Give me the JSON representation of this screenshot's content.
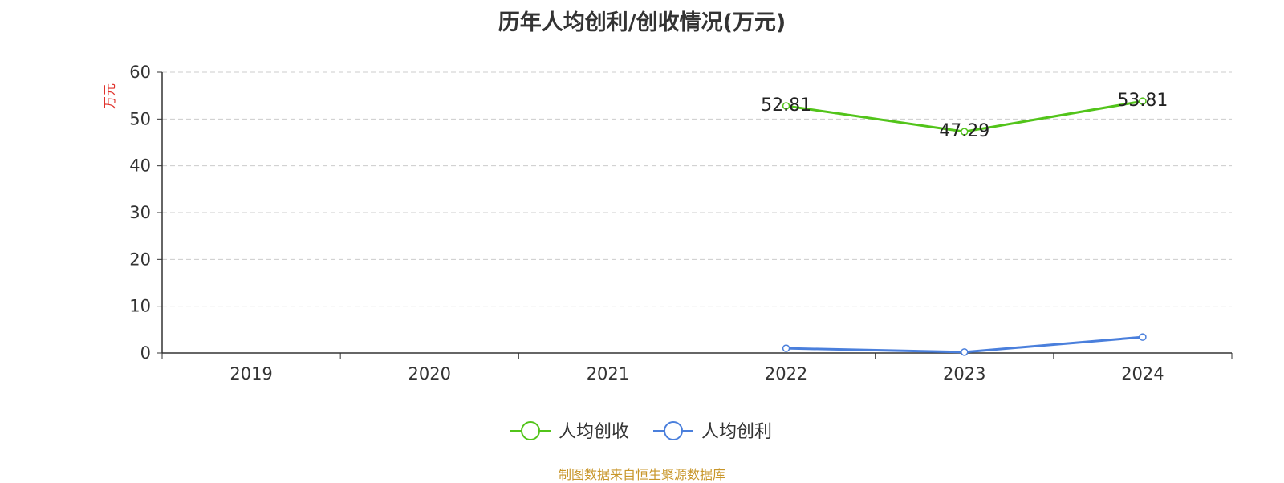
{
  "chart_data": {
    "type": "line",
    "title": "历年人均创利/创收情况(万元)",
    "ylabel": "万元",
    "xlabel": "",
    "categories": [
      "2019",
      "2020",
      "2021",
      "2022",
      "2023",
      "2024"
    ],
    "ylim": [
      0,
      60
    ],
    "yticks": [
      0,
      10,
      20,
      30,
      40,
      50,
      60
    ],
    "grid": true,
    "legend_position": "bottom",
    "series": [
      {
        "name": "人均创收",
        "color": "#52c41a",
        "values": [
          null,
          null,
          null,
          52.81,
          47.29,
          53.81
        ],
        "data_labels": [
          "",
          "",
          "",
          "52.81",
          "47.29",
          "53.81"
        ]
      },
      {
        "name": "人均创利",
        "color": "#4a7fdc",
        "values": [
          null,
          null,
          null,
          1.0,
          0.2,
          3.4
        ],
        "data_labels": [
          "",
          "",
          "",
          "",
          "",
          ""
        ]
      }
    ]
  },
  "source_text": "制图数据来自恒生聚源数据库",
  "colors": {
    "ylabel": "#e0302a",
    "axis": "#333333",
    "grid": "#cccccc"
  }
}
